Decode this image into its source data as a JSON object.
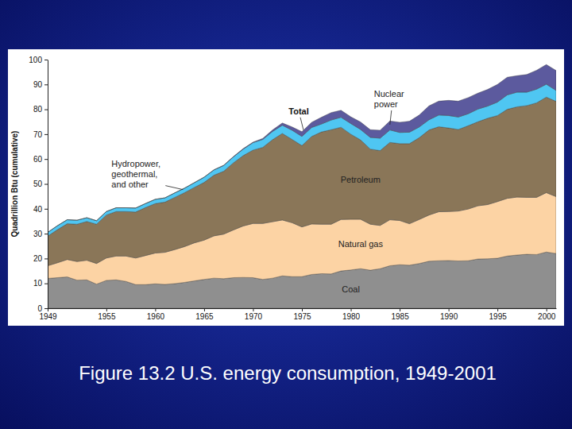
{
  "chart_data": {
    "type": "area",
    "stacked": true,
    "title": "Figure 13.2 U.S. energy consumption, 1949-2001",
    "y_label": "Quadrillion Btu (cumulative)",
    "annotations": [
      "Total"
    ],
    "x": [
      1949,
      1950,
      1951,
      1952,
      1953,
      1954,
      1955,
      1956,
      1957,
      1958,
      1959,
      1960,
      1961,
      1962,
      1963,
      1964,
      1965,
      1966,
      1967,
      1968,
      1969,
      1970,
      1971,
      1972,
      1973,
      1974,
      1975,
      1976,
      1977,
      1978,
      1979,
      1980,
      1981,
      1982,
      1983,
      1984,
      1985,
      1986,
      1987,
      1988,
      1989,
      1990,
      1991,
      1992,
      1993,
      1994,
      1995,
      1996,
      1997,
      1998,
      1999,
      2000,
      2001
    ],
    "xlim": [
      1949,
      2001
    ],
    "xticks": [
      1949,
      1955,
      1960,
      1965,
      1970,
      1975,
      1980,
      1985,
      1990,
      1995,
      2000
    ],
    "ylim": [
      0,
      100
    ],
    "yticks": [
      0,
      10,
      20,
      30,
      40,
      50,
      60,
      70,
      80,
      90,
      100
    ],
    "grid": false,
    "series": [
      {
        "name": "Coal",
        "color": "#8f8f8f",
        "values": [
          12.0,
          12.3,
          12.6,
          11.3,
          11.4,
          9.7,
          11.2,
          11.4,
          10.8,
          9.5,
          9.5,
          9.8,
          9.6,
          9.9,
          10.4,
          11.0,
          11.6,
          12.1,
          11.9,
          12.3,
          12.4,
          12.3,
          11.6,
          12.1,
          13.0,
          12.7,
          12.7,
          13.6,
          13.9,
          13.8,
          15.0,
          15.4,
          15.9,
          15.3,
          15.9,
          17.1,
          17.5,
          17.3,
          18.0,
          18.9,
          19.1,
          19.2,
          19.0,
          19.1,
          19.8,
          19.9,
          20.1,
          21.0,
          21.4,
          21.7,
          21.6,
          22.6,
          22.0
        ]
      },
      {
        "name": "Natural gas",
        "color": "#fcd3a4",
        "values": [
          5.1,
          6.0,
          7.0,
          7.5,
          7.9,
          8.3,
          9.0,
          9.6,
          10.2,
          10.7,
          11.7,
          12.4,
          12.9,
          13.7,
          14.4,
          15.3,
          15.8,
          17.0,
          17.9,
          19.2,
          20.7,
          21.8,
          22.5,
          22.7,
          22.5,
          21.7,
          20.0,
          20.3,
          19.9,
          20.0,
          20.7,
          20.4,
          19.9,
          18.5,
          17.4,
          18.5,
          17.8,
          16.7,
          17.7,
          18.6,
          19.7,
          19.7,
          20.1,
          20.8,
          21.4,
          21.8,
          22.8,
          23.2,
          23.3,
          22.9,
          23.0,
          23.9,
          22.9
        ]
      },
      {
        "name": "Petroleum",
        "color": "#8a7658",
        "values": [
          11.9,
          13.3,
          14.4,
          15.0,
          15.6,
          15.8,
          17.3,
          17.9,
          17.9,
          18.5,
          19.3,
          19.9,
          20.2,
          21.0,
          21.7,
          22.3,
          23.2,
          24.4,
          25.3,
          27.0,
          28.3,
          29.5,
          30.6,
          33.0,
          34.8,
          33.5,
          32.7,
          35.2,
          37.1,
          38.0,
          37.1,
          34.2,
          31.9,
          30.2,
          30.1,
          31.1,
          30.9,
          32.2,
          32.9,
          34.2,
          34.2,
          33.6,
          32.8,
          33.5,
          33.8,
          34.7,
          34.6,
          35.8,
          36.3,
          36.9,
          38.0,
          38.4,
          38.3
        ]
      },
      {
        "name": "Hydropower, geothermal, and other",
        "color": "#4fc6f2",
        "values": [
          1.5,
          1.6,
          1.6,
          1.6,
          1.5,
          1.4,
          1.4,
          1.5,
          1.5,
          1.6,
          1.6,
          1.7,
          1.7,
          1.8,
          1.8,
          1.9,
          2.1,
          2.1,
          2.3,
          2.4,
          2.6,
          3.0,
          3.2,
          3.3,
          3.3,
          3.7,
          3.7,
          3.6,
          3.2,
          3.9,
          4.0,
          4.3,
          4.2,
          4.7,
          5.0,
          5.0,
          4.5,
          4.6,
          4.3,
          4.1,
          4.7,
          5.0,
          5.0,
          4.8,
          5.1,
          4.9,
          5.4,
          5.8,
          5.9,
          5.4,
          5.5,
          5.2,
          4.4
        ]
      },
      {
        "name": "Nuclear power",
        "color": "#5c5a9e",
        "values": [
          0,
          0,
          0,
          0,
          0,
          0,
          0,
          0,
          0,
          0,
          0,
          0,
          0,
          0,
          0,
          0,
          0,
          0.1,
          0.1,
          0.1,
          0.2,
          0.2,
          0.4,
          0.6,
          0.9,
          1.3,
          1.9,
          2.1,
          2.7,
          3.0,
          2.8,
          2.7,
          3.0,
          3.1,
          3.2,
          3.6,
          4.1,
          4.4,
          4.8,
          5.6,
          5.6,
          6.1,
          6.4,
          6.5,
          6.4,
          6.7,
          7.1,
          7.1,
          6.6,
          7.1,
          7.6,
          7.9,
          8.0
        ]
      }
    ]
  }
}
